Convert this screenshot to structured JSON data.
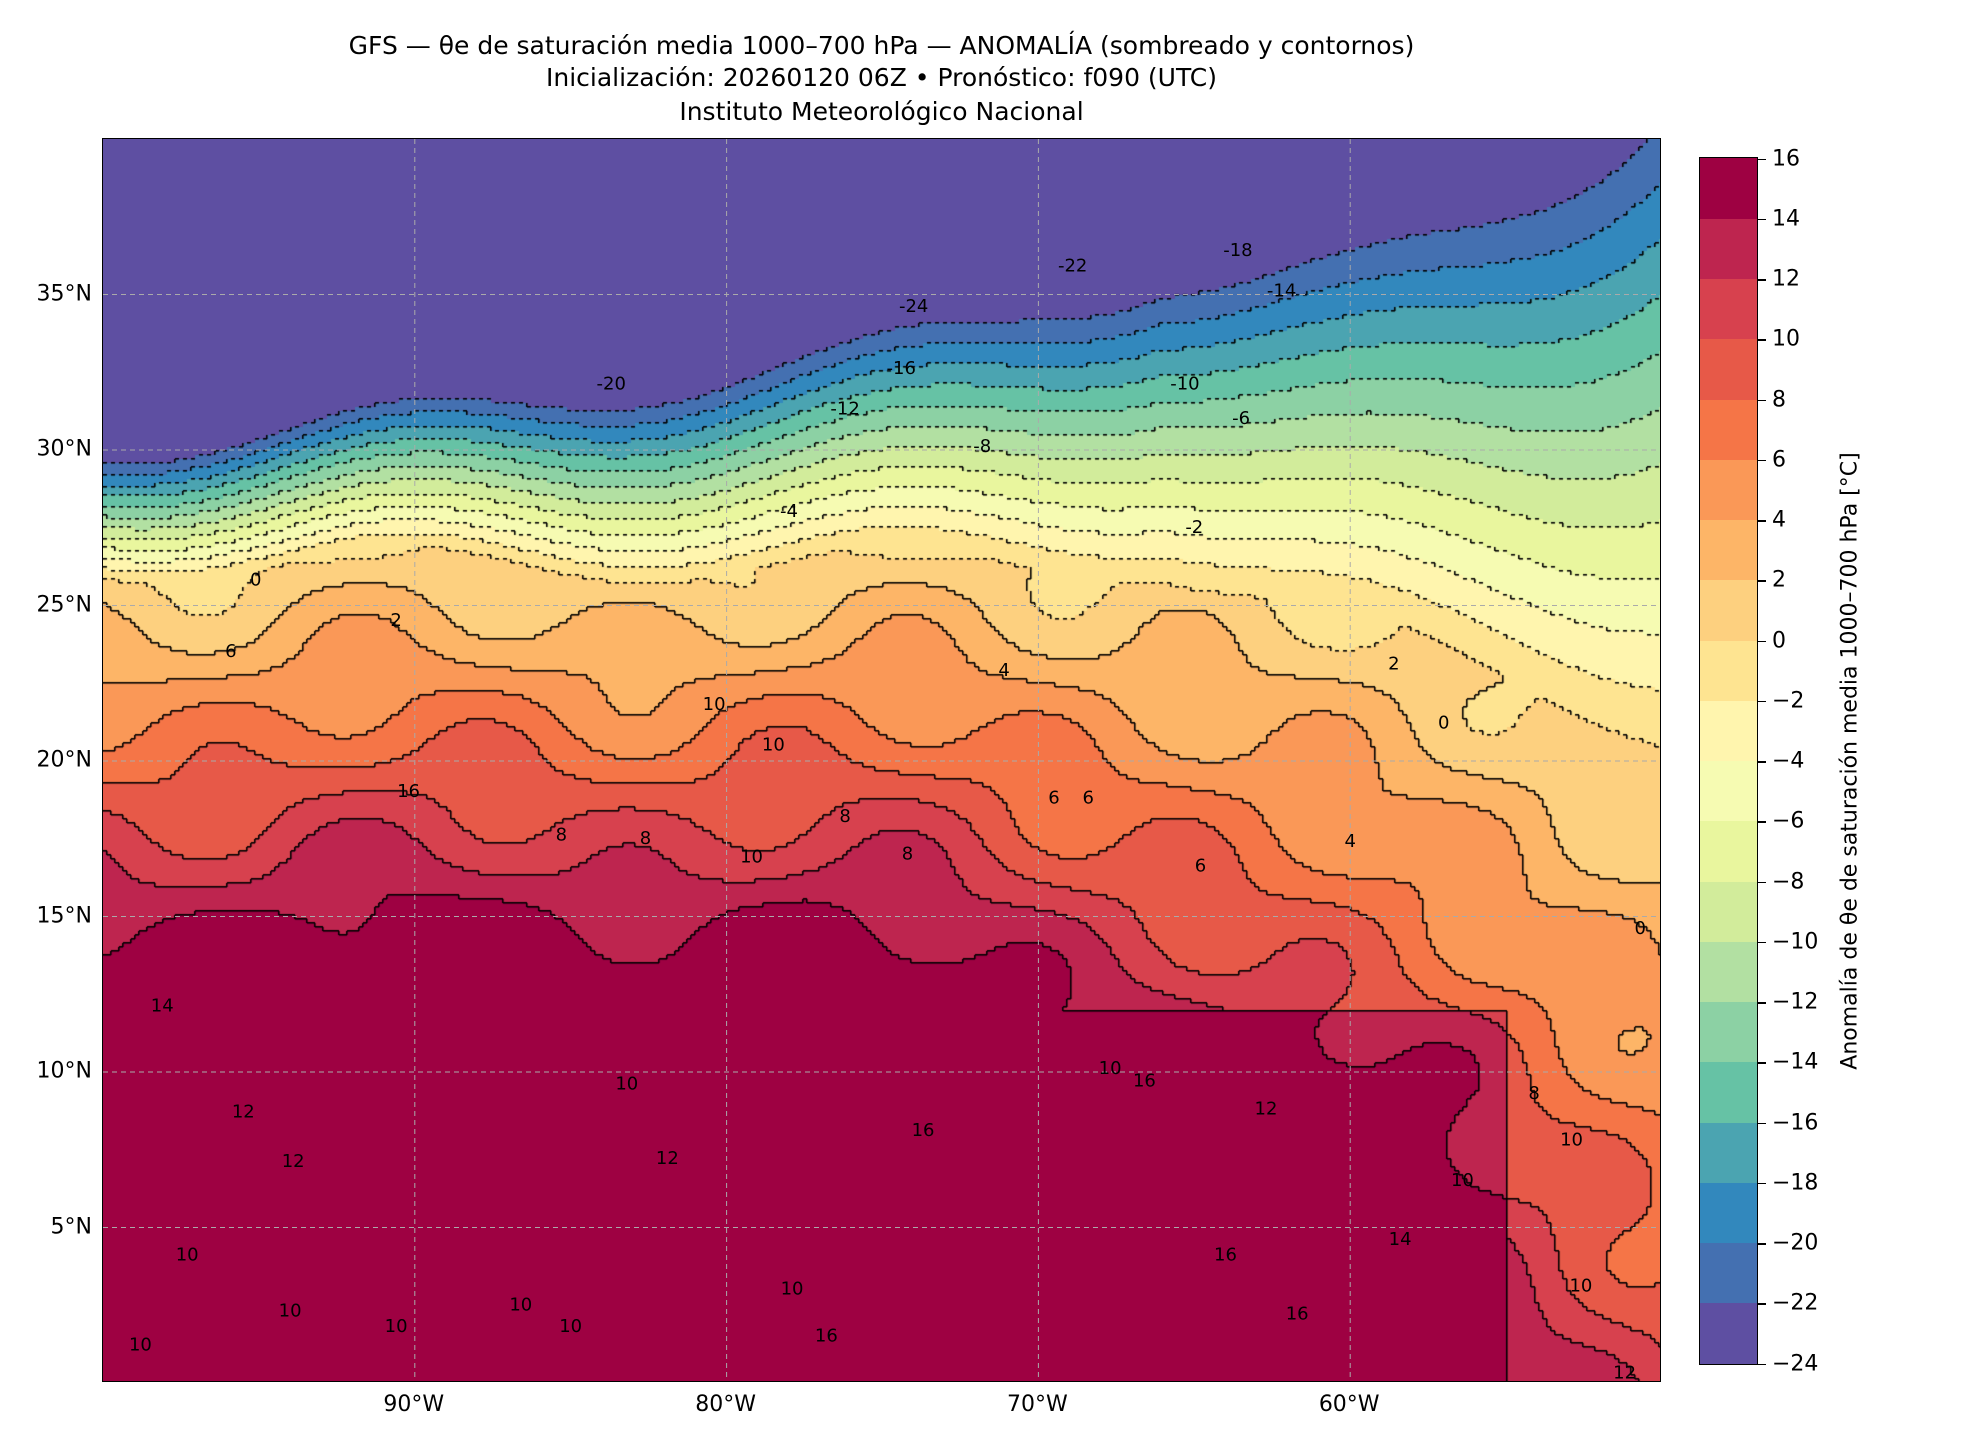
{
  "title": {
    "line1": "GFS — θe de saturación media 1000–700 hPa — ANOMALÍA (sombreado y contornos)",
    "line2": "Inicialización: 20260120 06Z   •   Pronóstico: f090 (UTC)",
    "line3": "Instituto Meteorológico Nacional"
  },
  "chart_data": {
    "type": "heatmap",
    "title": "GFS — θe de saturación media 1000–700 hPa — ANOMALÍA (sombreado y contornos)",
    "xlim": [
      -100,
      -50
    ],
    "ylim": [
      0,
      40
    ],
    "grid": true,
    "x_ticks": [
      {
        "value": -90,
        "label": "90°W"
      },
      {
        "value": -80,
        "label": "80°W"
      },
      {
        "value": -70,
        "label": "70°W"
      },
      {
        "value": -60,
        "label": "60°W"
      }
    ],
    "y_ticks": [
      {
        "value": 35,
        "label": "35°N"
      },
      {
        "value": 30,
        "label": "30°N"
      },
      {
        "value": 25,
        "label": "25°N"
      },
      {
        "value": 20,
        "label": "20°N"
      },
      {
        "value": 15,
        "label": "15°N"
      },
      {
        "value": 10,
        "label": "10°N"
      },
      {
        "value": 5,
        "label": "5°N"
      }
    ],
    "colorbar": {
      "label": "Anomalía de θe de saturación media 1000–700 hPa [°C]",
      "levels": [
        -24,
        -22,
        -20,
        -18,
        -16,
        -14,
        -12,
        -10,
        -8,
        -6,
        -4,
        -2,
        0,
        2,
        4,
        6,
        8,
        10,
        12,
        14,
        16
      ],
      "tick_labels": [
        "−24",
        "−22",
        "−20",
        "−18",
        "−16",
        "−14",
        "−12",
        "−10",
        "−8",
        "−6",
        "−4",
        "−2",
        "0",
        "2",
        "4",
        "6",
        "8",
        "10",
        "12",
        "14",
        "16"
      ],
      "colors": [
        "#5e4fa2",
        "#4470b1",
        "#3288bd",
        "#4ba4b1",
        "#66c2a5",
        "#8cd1a4",
        "#b2e0a2",
        "#d2ec9b",
        "#e9f69e",
        "#f6fbb2",
        "#fff5ae",
        "#fee491",
        "#fdd07f",
        "#fdb567",
        "#fa9857",
        "#f57547",
        "#e75948",
        "#d7414e",
        "#be254f",
        "#9e0142"
      ]
    },
    "contour_labels": [
      {
        "text": "-24",
        "lon": -74.0,
        "lat": 34.6
      },
      {
        "text": "-22",
        "lon": -68.9,
        "lat": 35.9
      },
      {
        "text": "-18",
        "lon": -63.6,
        "lat": 36.4
      },
      {
        "text": "-14",
        "lon": -62.2,
        "lat": 35.1
      },
      {
        "text": "-20",
        "lon": -83.7,
        "lat": 32.1
      },
      {
        "text": "-16",
        "lon": -74.4,
        "lat": 32.6
      },
      {
        "text": "-12",
        "lon": -76.2,
        "lat": 31.3
      },
      {
        "text": "-10",
        "lon": -65.3,
        "lat": 32.1
      },
      {
        "text": "-8",
        "lon": -71.8,
        "lat": 30.1
      },
      {
        "text": "-6",
        "lon": -63.5,
        "lat": 31.0
      },
      {
        "text": "-4",
        "lon": -78.0,
        "lat": 28.0
      },
      {
        "text": "-2",
        "lon": -65.0,
        "lat": 27.5
      },
      {
        "text": "0",
        "lon": -95.1,
        "lat": 25.8
      },
      {
        "text": "2",
        "lon": -90.6,
        "lat": 24.5
      },
      {
        "text": "6",
        "lon": -95.9,
        "lat": 23.5
      },
      {
        "text": "4",
        "lon": -71.1,
        "lat": 22.9
      },
      {
        "text": "2",
        "lon": -58.6,
        "lat": 23.1
      },
      {
        "text": "0",
        "lon": -57.0,
        "lat": 21.2
      },
      {
        "text": "10",
        "lon": -80.4,
        "lat": 21.8
      },
      {
        "text": "10",
        "lon": -78.5,
        "lat": 20.5
      },
      {
        "text": "16",
        "lon": -90.2,
        "lat": 19.0
      },
      {
        "text": "8",
        "lon": -85.3,
        "lat": 17.6
      },
      {
        "text": "8",
        "lon": -82.6,
        "lat": 17.5
      },
      {
        "text": "10",
        "lon": -79.2,
        "lat": 16.9
      },
      {
        "text": "8",
        "lon": -76.2,
        "lat": 18.2
      },
      {
        "text": "8",
        "lon": -74.2,
        "lat": 17.0
      },
      {
        "text": "6",
        "lon": -69.5,
        "lat": 18.8
      },
      {
        "text": "6",
        "lon": -68.4,
        "lat": 18.8
      },
      {
        "text": "4",
        "lon": -60.0,
        "lat": 17.4
      },
      {
        "text": "6",
        "lon": -64.8,
        "lat": 16.6
      },
      {
        "text": "0",
        "lon": -50.7,
        "lat": 14.6
      },
      {
        "text": "8",
        "lon": -54.1,
        "lat": 9.3
      },
      {
        "text": "14",
        "lon": -98.1,
        "lat": 12.1
      },
      {
        "text": "12",
        "lon": -95.5,
        "lat": 8.7
      },
      {
        "text": "12",
        "lon": -93.9,
        "lat": 7.1
      },
      {
        "text": "10",
        "lon": -97.3,
        "lat": 4.1
      },
      {
        "text": "10",
        "lon": -94.0,
        "lat": 2.3
      },
      {
        "text": "10",
        "lon": -98.8,
        "lat": 1.2
      },
      {
        "text": "10",
        "lon": -90.6,
        "lat": 1.8
      },
      {
        "text": "10",
        "lon": -86.6,
        "lat": 2.5
      },
      {
        "text": "10",
        "lon": -85.0,
        "lat": 1.8
      },
      {
        "text": "10",
        "lon": -83.2,
        "lat": 9.6
      },
      {
        "text": "10",
        "lon": -67.7,
        "lat": 10.1
      },
      {
        "text": "16",
        "lon": -66.6,
        "lat": 9.7
      },
      {
        "text": "12",
        "lon": -62.7,
        "lat": 8.8
      },
      {
        "text": "16",
        "lon": -73.7,
        "lat": 8.1
      },
      {
        "text": "10",
        "lon": -56.4,
        "lat": 6.5
      },
      {
        "text": "10",
        "lon": -52.9,
        "lat": 7.8
      },
      {
        "text": "14",
        "lon": -58.4,
        "lat": 4.6
      },
      {
        "text": "16",
        "lon": -61.7,
        "lat": 2.2
      },
      {
        "text": "16",
        "lon": -64.0,
        "lat": 4.1
      },
      {
        "text": "10",
        "lon": -52.6,
        "lat": 3.1
      },
      {
        "text": "16",
        "lon": -76.8,
        "lat": 1.5
      },
      {
        "text": "10",
        "lon": -77.9,
        "lat": 3.0
      },
      {
        "text": "12",
        "lon": -51.2,
        "lat": 0.3
      },
      {
        "text": "12",
        "lon": -81.9,
        "lat": 7.2
      }
    ]
  }
}
